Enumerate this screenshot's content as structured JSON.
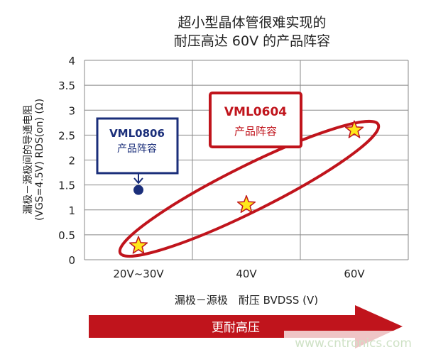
{
  "chart_data": {
    "type": "scatter",
    "title_lines": [
      "超小型晶体管很难实现的",
      "耐压高达 60V 的产品阵容"
    ],
    "xlabel": "漏极－源极　耐压 BVDSS (V)",
    "ylabel_lines": [
      "漏极－源极间的导通电阻",
      "(VGS=4.5V)  RDS(on) (Ω)"
    ],
    "categories": [
      "20V~30V",
      "40V",
      "60V"
    ],
    "ylim": [
      0,
      4
    ],
    "yticks": [
      "0",
      "0.5",
      "1",
      "1.5",
      "2",
      "2.5",
      "3",
      "3.5",
      "4"
    ],
    "grid": true,
    "series": [
      {
        "name": "VML0806",
        "subtitle": "产品阵容",
        "marker": "circle",
        "color": "#1a2e7a",
        "points": [
          {
            "x": "20V~30V",
            "y": 1.4
          }
        ]
      },
      {
        "name": "VML0604",
        "subtitle": "产品阵容",
        "marker": "star",
        "color": "#c0141c",
        "points": [
          {
            "x": "20V~30V",
            "y": 0.28
          },
          {
            "x": "40V",
            "y": 1.1
          },
          {
            "x": "60V",
            "y": 2.6
          }
        ]
      }
    ],
    "arrow_label": "更耐高压",
    "watermark": "www.cntronics.com"
  },
  "colors": {
    "red": "#c0141c",
    "navy": "#1a2e7a",
    "star_fill": "#ffe81a",
    "grid": "#888888"
  }
}
